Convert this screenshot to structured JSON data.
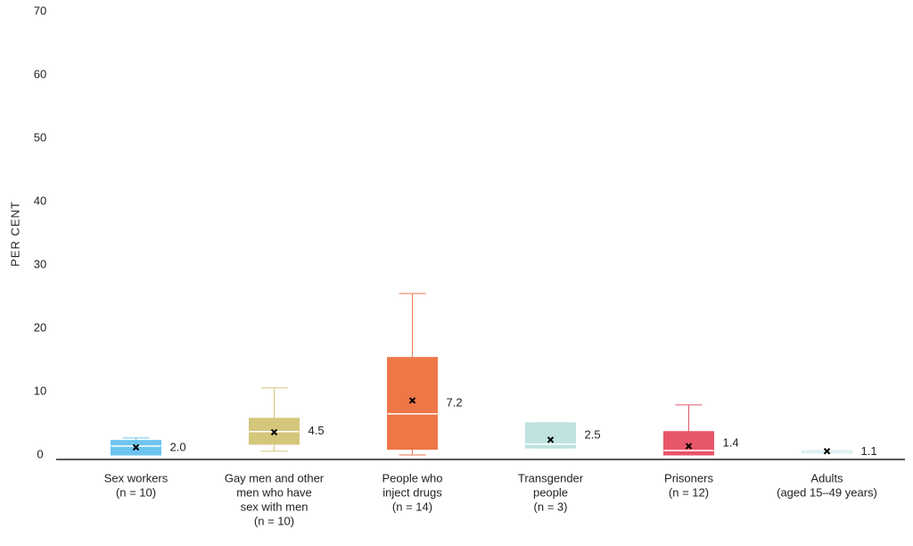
{
  "chart_data": {
    "type": "box",
    "ylabel": "PER CENT",
    "categories": [
      [
        "Sex workers",
        "(n = 10)"
      ],
      [
        "Gay men and other",
        "men who have",
        "sex with men",
        "(n = 10)"
      ],
      [
        "People who",
        "inject drugs",
        "(n = 14)"
      ],
      [
        "Transgender",
        "people",
        "(n = 3)"
      ],
      [
        "Prisoners",
        "(n = 12)"
      ],
      [
        "Adults",
        "(aged 15–49 years)"
      ]
    ],
    "low": [
      0,
      0.6,
      0,
      1.1,
      0,
      0.4
    ],
    "q1": [
      0,
      1.7,
      0.9,
      1.1,
      0,
      0.4
    ],
    "median": [
      1.4,
      3.7,
      6.5,
      1.7,
      0.7,
      0.5
    ],
    "q3": [
      2.3,
      5.8,
      15.4,
      5.1,
      3.7,
      0.6
    ],
    "high": [
      2.7,
      10.6,
      25.5,
      5.1,
      7.9,
      0.6
    ],
    "mean": [
      1.2,
      3.6,
      8.6,
      2.4,
      1.4,
      0.6
    ],
    "values": [
      2.0,
      4.5,
      7.2,
      2.5,
      1.4,
      1.1
    ],
    "value_labels": [
      "2.0",
      "4.5",
      "7.2",
      "2.5",
      "1.4",
      "1.1"
    ],
    "colors": [
      "#6cc4ef",
      "#d4c67a",
      "#ee7748",
      "#bfe3df",
      "#e8566a",
      "#8fd0d0"
    ],
    "ylim": [
      0,
      70
    ],
    "yticks": [
      0,
      10,
      20,
      30,
      40,
      50,
      60,
      70
    ]
  }
}
